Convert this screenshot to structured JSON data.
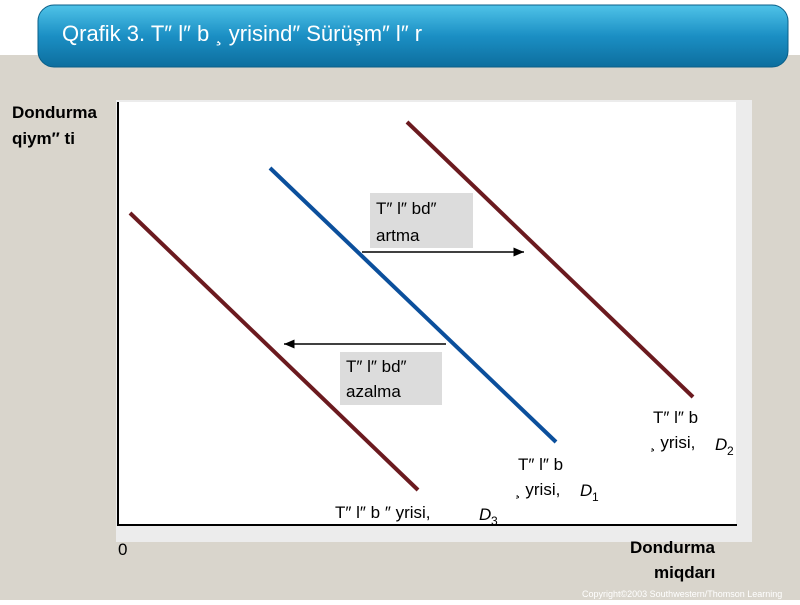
{
  "header": {
    "title": "Qrafik 3. T″ l″ b ¸ yrisind″ Sürüşm″ l″ r"
  },
  "axes": {
    "y_label": [
      "Dondurma",
      "qiym″ ti"
    ],
    "x_label": [
      "Dondurma",
      "miqdarı"
    ],
    "origin": "0"
  },
  "annotations": [
    {
      "lines": [
        "T″ l″ bd″",
        "artma"
      ]
    },
    {
      "lines": [
        "T″ l″ bd″",
        "azalma"
      ]
    }
  ],
  "curves": [
    {
      "lines": [
        "T″ l″ b",
        "¸ yrisi,"
      ],
      "letter": "D",
      "subscript": "2"
    },
    {
      "lines": [
        "T″ l″ b",
        "¸ yrisi,"
      ],
      "letter": "D",
      "subscript": "1"
    },
    {
      "lines": [
        "T″ l″ b ″ yrisi,"
      ],
      "letter": "D",
      "subscript": "3"
    }
  ],
  "footer": {
    "copyright": "Copyright©2003  Southwestern/Thomson Learning"
  }
}
